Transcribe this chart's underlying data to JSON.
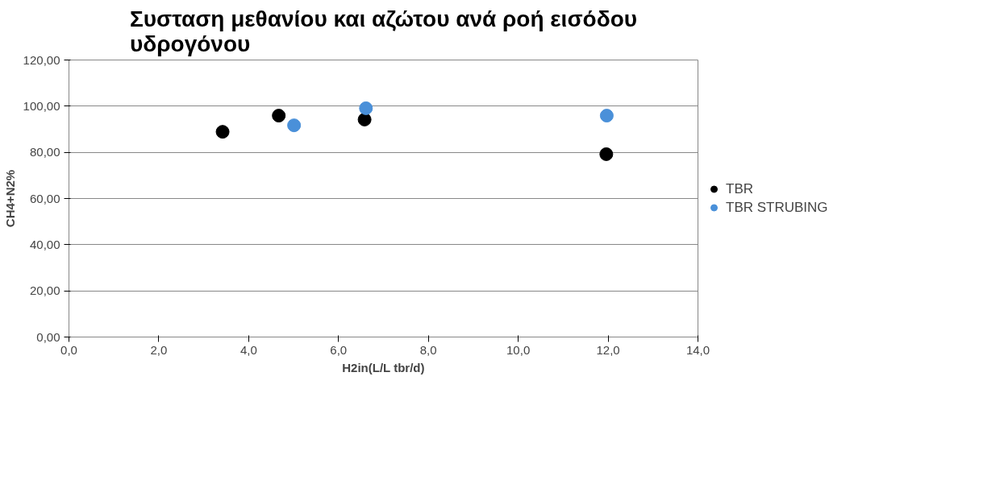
{
  "chart_data": {
    "type": "scatter",
    "title": "Συσταση μεθανίου και αζώτου ανά ροή εισόδου υδρογόνου",
    "xlabel": "H2in(L/L tbr/d)",
    "ylabel": "CH4+N2%",
    "series": [
      {
        "name": "TBR",
        "color": "#000000",
        "x": [
          3.42,
          4.67,
          6.58,
          11.96
        ],
        "values": [
          88.9,
          95.9,
          94.2,
          79.2
        ]
      },
      {
        "name": "TBR STRUBING",
        "color": "#4a90d9",
        "x": [
          5.01,
          6.61,
          11.97
        ],
        "values": [
          91.7,
          99.1,
          95.9
        ]
      }
    ],
    "xlim": [
      0,
      14
    ],
    "ylim": [
      0,
      120
    ],
    "xticks": [
      {
        "value": 0,
        "label": "0,0"
      },
      {
        "value": 2,
        "label": "2,0"
      },
      {
        "value": 4,
        "label": "4,0"
      },
      {
        "value": 6,
        "label": "6,0"
      },
      {
        "value": 8,
        "label": "8,0"
      },
      {
        "value": 10,
        "label": "10,0"
      },
      {
        "value": 12,
        "label": "12,0"
      },
      {
        "value": 14,
        "label": "14,0"
      }
    ],
    "yticks": [
      {
        "value": 0,
        "label": "0,00"
      },
      {
        "value": 20,
        "label": "20,00"
      },
      {
        "value": 40,
        "label": "40,00"
      },
      {
        "value": 60,
        "label": "60,00"
      },
      {
        "value": 80,
        "label": "80,00"
      },
      {
        "value": 100,
        "label": "100,00"
      },
      {
        "value": 120,
        "label": "120,00"
      }
    ],
    "grid": "y",
    "legend": "right",
    "marker": "circle"
  }
}
